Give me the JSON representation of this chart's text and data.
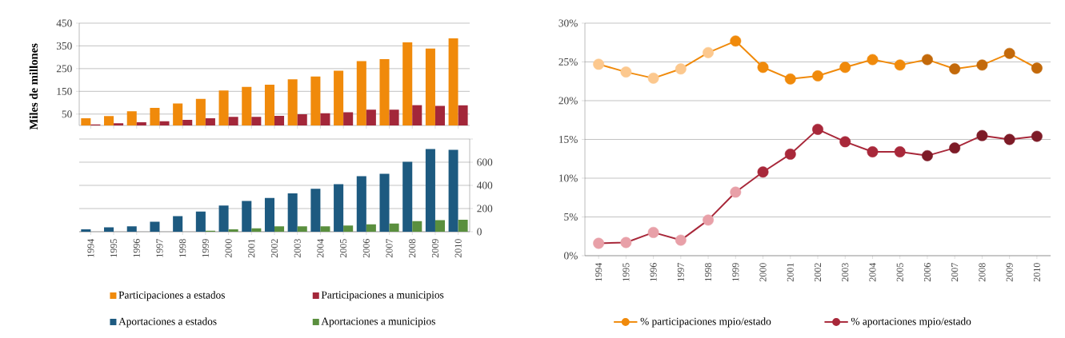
{
  "chart_data": [
    {
      "type": "bar",
      "ylabel": "Miles de millones",
      "categories": [
        "1994",
        "1995",
        "1996",
        "1997",
        "1998",
        "1999",
        "2000",
        "2001",
        "2002",
        "2003",
        "2004",
        "2005",
        "2006",
        "2007",
        "2008",
        "2009",
        "2010"
      ],
      "series": [
        {
          "name": "Participaciones a estados",
          "color": "#f08a0b",
          "values": [
            32,
            41,
            62,
            77,
            97,
            117,
            154,
            170,
            179,
            203,
            215,
            241,
            283,
            292,
            366,
            338,
            383
          ]
        },
        {
          "name": "Participaciones a municipios",
          "color": "#a3273a",
          "values": [
            4,
            10,
            14,
            18,
            25,
            32,
            38,
            38,
            42,
            49,
            54,
            58,
            69,
            69,
            90,
            86,
            89
          ]
        }
      ],
      "ylim": [
        0,
        450
      ],
      "yticks": [
        50,
        150,
        250,
        350,
        450
      ],
      "grid": "y",
      "legend": "bottom",
      "tick_labels": "y"
    },
    {
      "type": "bar",
      "categories": [
        "1994",
        "1995",
        "1996",
        "1997",
        "1998",
        "1999",
        "2000",
        "2001",
        "2002",
        "2003",
        "2004",
        "2005",
        "2006",
        "2007",
        "2008",
        "2009",
        "2010"
      ],
      "series": [
        {
          "name": "Aportaciones a estados",
          "color": "#1d5a80",
          "axis": "y2",
          "values": [
            20,
            37,
            46,
            86,
            134,
            174,
            226,
            266,
            291,
            331,
            371,
            411,
            480,
            500,
            603,
            714,
            706
          ]
        },
        {
          "name": "Aportaciones a municipios",
          "color": "#5a8f3e",
          "axis": "y2",
          "values": [
            0,
            0,
            0,
            0,
            0,
            9,
            20,
            29,
            46,
            46,
            46,
            54,
            63,
            71,
            91,
            100,
            103
          ]
        }
      ],
      "y2lim": [
        0,
        800
      ],
      "y2ticks": [
        0,
        200,
        400,
        600,
        {
          "value": 800,
          "label": null
        }
      ],
      "grid": "y",
      "legend": "bottom"
    },
    {
      "type": "line",
      "categories": [
        "1994",
        "1995",
        "1996",
        "1997",
        "1998",
        "1999",
        "2000",
        "2001",
        "2002",
        "2003",
        "2004",
        "2005",
        "2006",
        "2007",
        "2008",
        "2009",
        "2010"
      ],
      "series": [
        {
          "name": "% participaciones mpio/estado",
          "color": "#f08a0b",
          "colors": [
            "#fcc88e",
            "#fcc88e",
            "#fcc88e",
            "#fcc88e",
            "#fcc88e",
            "#f08a0b",
            "#f08a0b",
            "#f08a0b",
            "#f08a0b",
            "#f08a0b",
            "#f08a0b",
            "#f08a0b",
            "#c3690a",
            "#c3690a",
            "#c3690a",
            "#c3690a",
            "#c3690a"
          ],
          "values": [
            24.7,
            23.7,
            22.9,
            24.1,
            26.2,
            27.7,
            24.3,
            22.8,
            23.2,
            24.3,
            25.3,
            24.6,
            25.3,
            24.1,
            24.6,
            26.1,
            24.2
          ]
        },
        {
          "name": "% aportaciones mpio/estado",
          "color": "#a8283a",
          "colors": [
            "#e8a0a8",
            "#e8a0a8",
            "#e8a0a8",
            "#e8a0a8",
            "#e8a0a8",
            "#e8a0a8",
            "#a8283a",
            "#a8283a",
            "#a8283a",
            "#a8283a",
            "#a8283a",
            "#a8283a",
            "#7d1b27",
            "#7d1b27",
            "#7d1b27",
            "#7d1b27",
            "#7d1b27"
          ],
          "values": [
            1.6,
            1.7,
            3.0,
            2.0,
            4.6,
            8.2,
            10.8,
            13.1,
            16.3,
            14.7,
            13.4,
            13.4,
            12.9,
            13.9,
            15.5,
            15.0,
            15.4
          ]
        }
      ],
      "ylim": [
        0,
        30
      ],
      "yticks": [
        {
          "value": 0,
          "label": "0%"
        },
        {
          "value": 5,
          "label": "5%"
        },
        {
          "value": 10,
          "label": "10%"
        },
        {
          "value": 15,
          "label": "15%"
        },
        {
          "value": 20,
          "label": "20%"
        },
        {
          "value": 25,
          "label": "25%"
        },
        {
          "value": 30,
          "label": "30%"
        }
      ],
      "grid": "y",
      "legend": "bottom",
      "marker": "circle"
    }
  ]
}
